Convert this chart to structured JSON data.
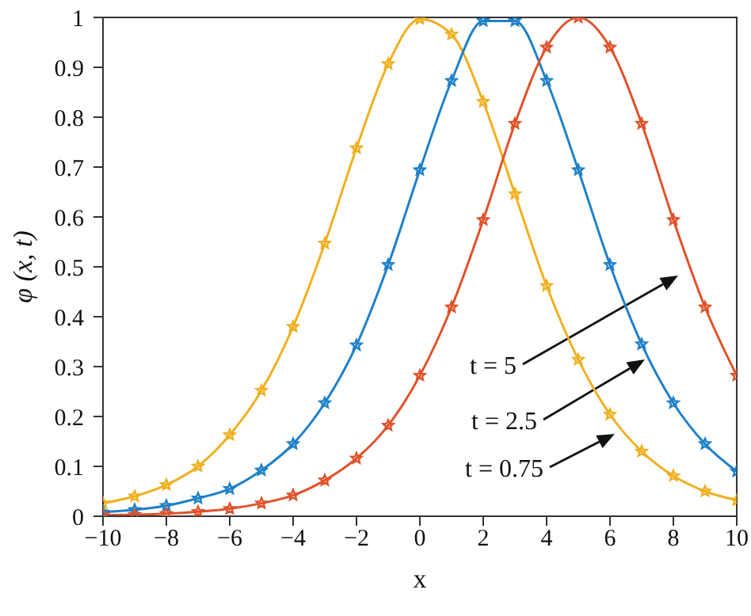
{
  "chart_data": {
    "type": "line",
    "xlabel": "x",
    "ylabel": "φ (x, t)",
    "x": [
      -10,
      -9,
      -8,
      -7,
      -6,
      -5,
      -4,
      -3,
      -2,
      -1,
      0,
      1,
      2,
      3,
      4,
      5,
      6,
      7,
      8,
      9,
      10
    ],
    "series": [
      {
        "color": "#f0b020",
        "values": [
          0.026,
          0.04,
          0.063,
          0.1,
          0.163,
          0.252,
          0.38,
          0.547,
          0.738,
          0.907,
          0.997,
          0.966,
          0.831,
          0.646,
          0.462,
          0.314,
          0.204,
          0.13,
          0.081,
          0.05,
          0.032
        ]
      },
      {
        "color": "#1f80c8",
        "values": [
          0.008,
          0.013,
          0.021,
          0.036,
          0.055,
          0.092,
          0.145,
          0.227,
          0.343,
          0.504,
          0.694,
          0.873,
          0.993,
          0.993,
          0.873,
          0.694,
          0.504,
          0.345,
          0.227,
          0.145,
          0.09
        ]
      },
      {
        "color": "#e0522a",
        "values": [
          0.002,
          0.003,
          0.005,
          0.009,
          0.015,
          0.026,
          0.042,
          0.072,
          0.116,
          0.182,
          0.282,
          0.419,
          0.594,
          0.787,
          0.94,
          1.0,
          0.94,
          0.787,
          0.594,
          0.419,
          0.282
        ]
      }
    ],
    "xlim": [
      -10,
      10
    ],
    "xticks": [
      -10,
      -8,
      -6,
      -4,
      -2,
      0,
      2,
      4,
      6,
      8,
      10
    ],
    "ylim": [
      0,
      1
    ],
    "yticks": [
      0,
      0.1,
      0.2,
      0.3,
      0.4,
      0.5,
      0.6,
      0.7,
      0.8,
      0.9,
      1
    ],
    "grid": false,
    "marker": "star",
    "line_style": "solid",
    "annotations": [
      "t = 5",
      "t = 2.5",
      "t = 0.75"
    ]
  }
}
